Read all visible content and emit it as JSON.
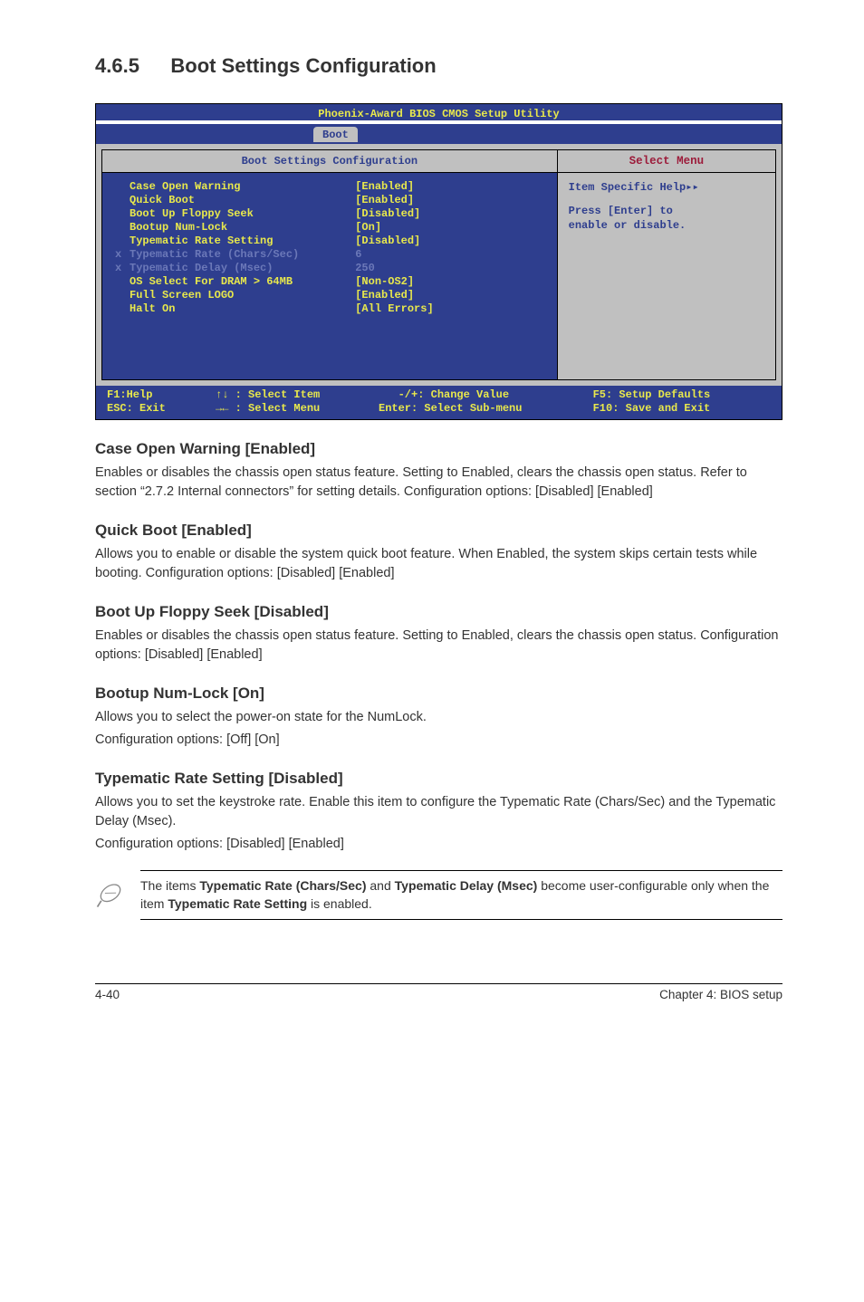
{
  "heading": {
    "number": "4.6.5",
    "title": "Boot Settings Configuration"
  },
  "bios": {
    "top_title": "Phoenix-Award BIOS CMOS Setup Utility",
    "tab": "Boot",
    "left_header": "Boot Settings Configuration",
    "right_header": "Select Menu",
    "help_line1": "Item Specific Help",
    "help_line2": "Press [Enter] to",
    "help_line3": "enable or disable.",
    "rows": [
      {
        "label": "Case Open Warning",
        "value": "[Enabled]",
        "disabled": false
      },
      {
        "label": "Quick Boot",
        "value": "[Enabled]",
        "disabled": false
      },
      {
        "label": "Boot Up Floppy Seek",
        "value": "[Disabled]",
        "disabled": false
      },
      {
        "label": "Bootup Num-Lock",
        "value": "[On]",
        "disabled": false
      },
      {
        "label": "Typematic Rate Setting",
        "value": "[Disabled]",
        "disabled": false
      },
      {
        "label": "Typematic Rate (Chars/Sec)",
        "value": "6",
        "disabled": true,
        "prefix": "x"
      },
      {
        "label": "Typematic Delay (Msec)",
        "value": "250",
        "disabled": true,
        "prefix": "x"
      },
      {
        "label": "OS Select For DRAM > 64MB",
        "value": "[Non-OS2]",
        "disabled": false
      },
      {
        "label": "Full Screen LOGO",
        "value": "[Enabled]",
        "disabled": false
      },
      {
        "label": "Halt On",
        "value": "[All Errors]",
        "disabled": false
      }
    ],
    "footer": {
      "c1a": "F1:Help",
      "c1b": "ESC: Exit",
      "c2a": "↑↓ : Select Item",
      "c2b": "→← : Select Menu",
      "c3a": "-/+: Change Value",
      "c3b": "Enter: Select Sub-menu",
      "c4a": "F5: Setup Defaults",
      "c4b": "F10: Save and Exit"
    }
  },
  "sections": [
    {
      "title": "Case Open Warning [Enabled]",
      "paras": [
        "Enables or disables the chassis open status feature. Setting to Enabled, clears the chassis open status. Refer to section “2.7.2 Internal connectors” for setting details. Configuration options: [Disabled] [Enabled]"
      ]
    },
    {
      "title": "Quick Boot [Enabled]",
      "paras": [
        "Allows you to enable or disable the system quick boot feature. When Enabled, the system skips certain tests while booting. Configuration options: [Disabled] [Enabled]"
      ]
    },
    {
      "title": "Boot Up Floppy Seek [Disabled]",
      "paras": [
        "Enables or disables the chassis open status feature. Setting to Enabled, clears the chassis open status. Configuration options: [Disabled] [Enabled]"
      ]
    },
    {
      "title": "Bootup Num-Lock [On]",
      "paras": [
        "Allows you to select the power-on state for the NumLock.",
        "Configuration options: [Off] [On]"
      ]
    },
    {
      "title": "Typematic Rate Setting [Disabled]",
      "paras": [
        "Allows you to set the keystroke rate. Enable this item to configure the Typematic Rate (Chars/Sec) and the Typematic Delay (Msec).",
        "Configuration options: [Disabled] [Enabled]"
      ]
    }
  ],
  "note": {
    "text_pre": "The items ",
    "b1": "Typematic Rate (Chars/Sec)",
    "mid": " and ",
    "b2": "Typematic Delay (Msec)",
    "text_post1": " become user-configurable only when the item ",
    "b3": "Typematic Rate Setting",
    "text_post2": " is enabled."
  },
  "page_footer": {
    "left": "4-40",
    "right": "Chapter 4: BIOS setup"
  }
}
